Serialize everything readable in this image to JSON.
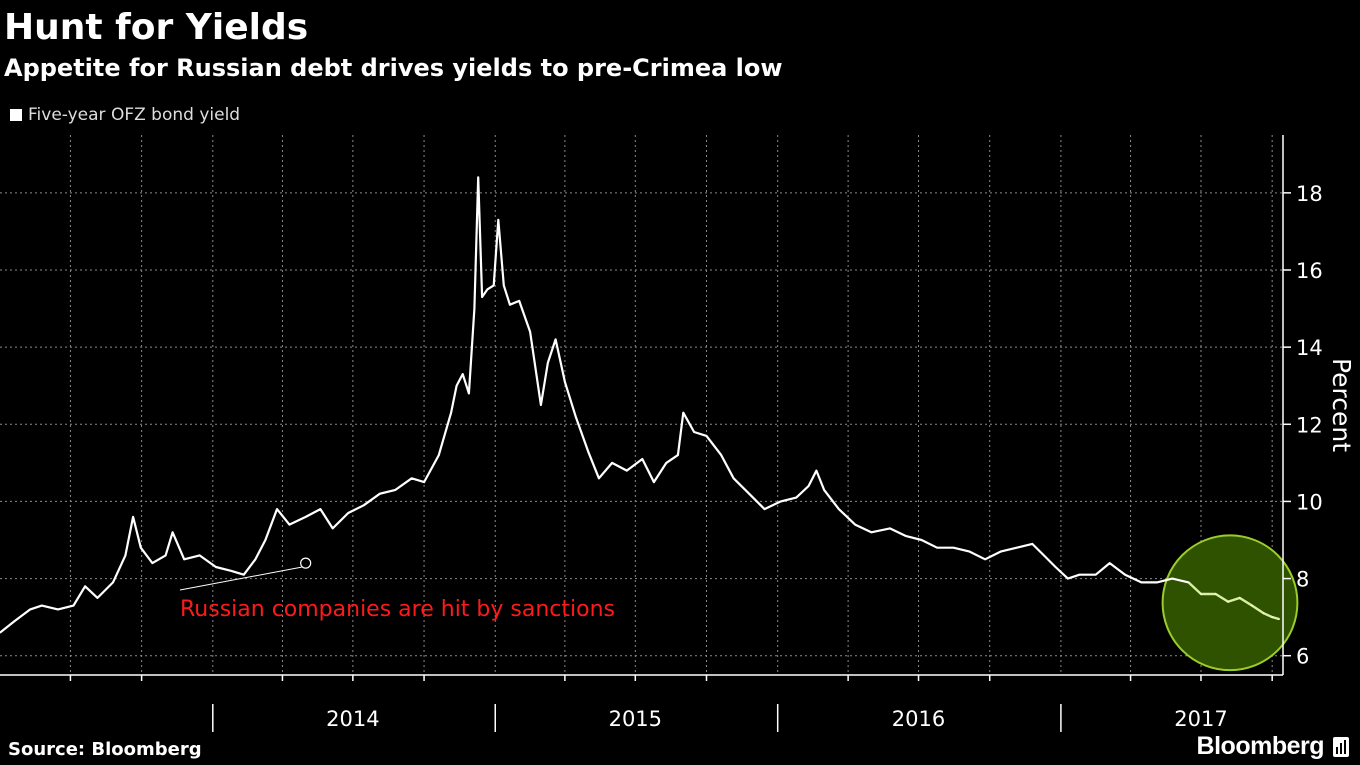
{
  "title": "Hunt for Yields",
  "subtitle": "Appetite for Russian debt drives yields to pre-Crimea low",
  "legend": "Five-year OFZ bond yield",
  "source": "Source: Bloomberg",
  "brand": "Bloomberg",
  "colors": {
    "background": "#000000",
    "line": "#ffffff",
    "annotation": "#ff1a1a",
    "highlight_fill": "#2f5200",
    "highlight_stroke": "#9ccc2a",
    "highlight_line": "#d8f0a0"
  },
  "chart_data": {
    "type": "line",
    "title": "Hunt for Yields",
    "subtitle": "Appetite for Russian debt drives yields to pre-Crimea low",
    "ylabel": "Percent",
    "xlabel": "",
    "ylim": [
      5.5,
      19.5
    ],
    "yticks": [
      6,
      8,
      10,
      12,
      14,
      16,
      18
    ],
    "xticks": [
      "2014",
      "2015",
      "2016",
      "2017"
    ],
    "x_range": [
      "2013-04-01",
      "2017-10-15"
    ],
    "grid": true,
    "legend_position": "top-left",
    "annotation": {
      "text": "Russian companies are hit by sanctions",
      "date": "2014-05-01",
      "value": 8.4
    },
    "highlight": {
      "from_date": "2017-06-15",
      "to_date": "2017-09-30"
    },
    "series": [
      {
        "name": "Five-year OFZ bond yield",
        "points": [
          [
            "2013-04-01",
            6.6
          ],
          [
            "2013-04-20",
            6.9
          ],
          [
            "2013-05-10",
            7.2
          ],
          [
            "2013-05-25",
            7.3
          ],
          [
            "2013-06-15",
            7.2
          ],
          [
            "2013-07-05",
            7.3
          ],
          [
            "2013-07-20",
            7.8
          ],
          [
            "2013-08-05",
            7.5
          ],
          [
            "2013-08-25",
            7.9
          ],
          [
            "2013-09-10",
            8.6
          ],
          [
            "2013-09-20",
            9.6
          ],
          [
            "2013-09-30",
            8.8
          ],
          [
            "2013-10-15",
            8.4
          ],
          [
            "2013-11-01",
            8.6
          ],
          [
            "2013-11-10",
            9.2
          ],
          [
            "2013-11-25",
            8.5
          ],
          [
            "2013-12-15",
            8.6
          ],
          [
            "2014-01-05",
            8.3
          ],
          [
            "2014-01-25",
            8.2
          ],
          [
            "2014-02-10",
            8.1
          ],
          [
            "2014-02-25",
            8.5
          ],
          [
            "2014-03-10",
            9.0
          ],
          [
            "2014-03-25",
            9.8
          ],
          [
            "2014-04-10",
            9.4
          ],
          [
            "2014-05-01",
            9.6
          ],
          [
            "2014-05-20",
            9.8
          ],
          [
            "2014-06-05",
            9.3
          ],
          [
            "2014-06-25",
            9.7
          ],
          [
            "2014-07-15",
            9.9
          ],
          [
            "2014-08-05",
            10.2
          ],
          [
            "2014-08-25",
            10.3
          ],
          [
            "2014-09-15",
            10.6
          ],
          [
            "2014-10-01",
            10.5
          ],
          [
            "2014-10-20",
            11.2
          ],
          [
            "2014-11-05",
            12.3
          ],
          [
            "2014-11-12",
            13.0
          ],
          [
            "2014-11-20",
            13.3
          ],
          [
            "2014-11-28",
            12.8
          ],
          [
            "2014-12-05",
            15.0
          ],
          [
            "2014-12-10",
            18.4
          ],
          [
            "2014-12-15",
            15.3
          ],
          [
            "2014-12-22",
            15.5
          ],
          [
            "2014-12-30",
            15.6
          ],
          [
            "2015-01-05",
            17.3
          ],
          [
            "2015-01-12",
            15.6
          ],
          [
            "2015-01-20",
            15.1
          ],
          [
            "2015-02-01",
            15.2
          ],
          [
            "2015-02-15",
            14.4
          ],
          [
            "2015-03-01",
            12.5
          ],
          [
            "2015-03-10",
            13.6
          ],
          [
            "2015-03-20",
            14.2
          ],
          [
            "2015-04-01",
            13.1
          ],
          [
            "2015-04-15",
            12.2
          ],
          [
            "2015-05-01",
            11.3
          ],
          [
            "2015-05-15",
            10.6
          ],
          [
            "2015-06-01",
            11.0
          ],
          [
            "2015-06-20",
            10.8
          ],
          [
            "2015-07-10",
            11.1
          ],
          [
            "2015-07-25",
            10.5
          ],
          [
            "2015-08-10",
            11.0
          ],
          [
            "2015-08-25",
            11.2
          ],
          [
            "2015-09-01",
            12.3
          ],
          [
            "2015-09-15",
            11.8
          ],
          [
            "2015-10-01",
            11.7
          ],
          [
            "2015-10-20",
            11.2
          ],
          [
            "2015-11-05",
            10.6
          ],
          [
            "2015-11-25",
            10.2
          ],
          [
            "2015-12-15",
            9.8
          ],
          [
            "2016-01-05",
            10.0
          ],
          [
            "2016-01-25",
            10.1
          ],
          [
            "2016-02-10",
            10.4
          ],
          [
            "2016-02-20",
            10.8
          ],
          [
            "2016-03-01",
            10.3
          ],
          [
            "2016-03-20",
            9.8
          ],
          [
            "2016-04-10",
            9.4
          ],
          [
            "2016-05-01",
            9.2
          ],
          [
            "2016-05-25",
            9.3
          ],
          [
            "2016-06-15",
            9.1
          ],
          [
            "2016-07-05",
            9.0
          ],
          [
            "2016-07-25",
            8.8
          ],
          [
            "2016-08-15",
            8.8
          ],
          [
            "2016-09-05",
            8.7
          ],
          [
            "2016-09-25",
            8.5
          ],
          [
            "2016-10-15",
            8.7
          ],
          [
            "2016-11-05",
            8.8
          ],
          [
            "2016-11-25",
            8.9
          ],
          [
            "2016-12-10",
            8.6
          ],
          [
            "2016-12-25",
            8.3
          ],
          [
            "2017-01-10",
            8.0
          ],
          [
            "2017-01-25",
            8.1
          ],
          [
            "2017-02-15",
            8.1
          ],
          [
            "2017-03-05",
            8.4
          ],
          [
            "2017-03-25",
            8.1
          ],
          [
            "2017-04-15",
            7.9
          ],
          [
            "2017-05-05",
            7.9
          ],
          [
            "2017-05-25",
            8.0
          ],
          [
            "2017-06-15",
            7.9
          ],
          [
            "2017-07-01",
            7.6
          ],
          [
            "2017-07-20",
            7.6
          ],
          [
            "2017-08-05",
            7.4
          ],
          [
            "2017-08-20",
            7.5
          ],
          [
            "2017-09-05",
            7.3
          ],
          [
            "2017-09-20",
            7.1
          ],
          [
            "2017-10-01",
            7.0
          ],
          [
            "2017-10-10",
            6.95
          ]
        ]
      }
    ]
  }
}
